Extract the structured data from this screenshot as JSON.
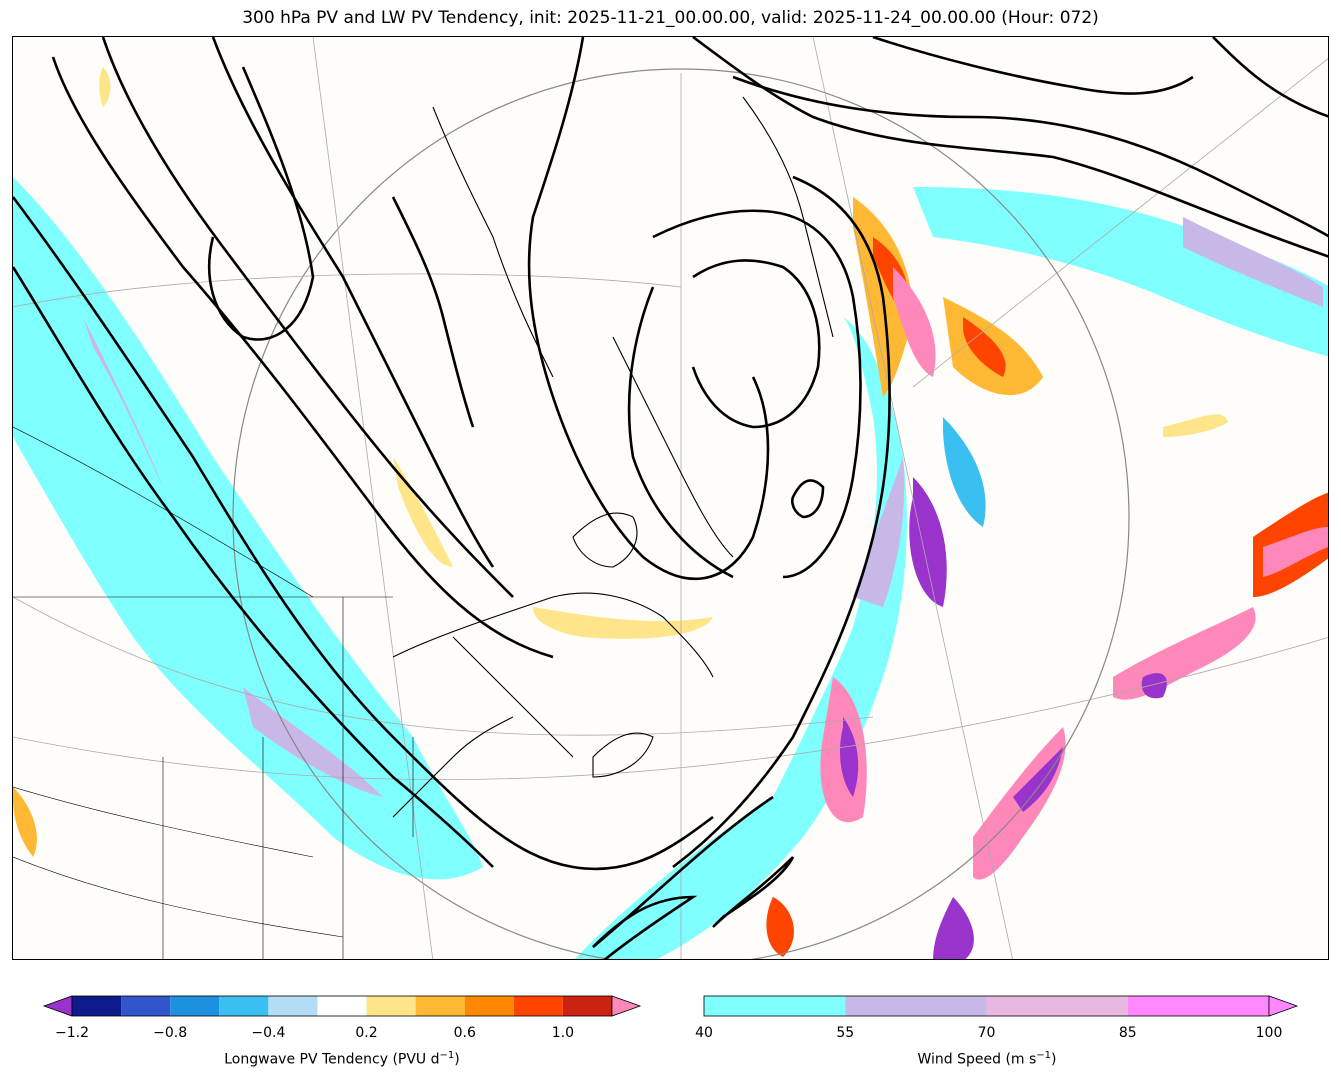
{
  "title": "300 hPa PV and LW PV Tendency, init: 2025-11-21_00.00.00, valid: 2025-11-24_00.00.00 (Hour: 072)",
  "colorbar_pv": {
    "label_main": "Longwave PV Tendency (PVU d",
    "label_exp": "−1",
    "label_end": ")",
    "ticks": [
      "−1.2",
      "−0.8",
      "−0.4",
      "0.2",
      "0.6",
      "1.0"
    ],
    "colors": [
      "#0d1a8c",
      "#3355cc",
      "#1e90e0",
      "#3ac0f0",
      "#b3ddf5",
      "#ffffff",
      "#ffe58a",
      "#ffb833",
      "#ff8800",
      "#ff4400",
      "#cc2211"
    ],
    "under_color": "#9933cc",
    "over_color": "#ff88bb"
  },
  "colorbar_wind": {
    "label_main": "Wind Speed (m s",
    "label_exp": "−1",
    "label_end": ")",
    "ticks": [
      "40",
      "55",
      "70",
      "85",
      "100"
    ],
    "colors": [
      "#80ffff",
      "#c8b8e8",
      "#e8b8e0",
      "#ff88ff"
    ],
    "over_color": "#ff88ff"
  }
}
